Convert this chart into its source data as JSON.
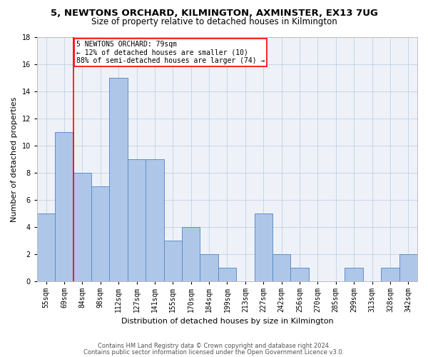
{
  "title": "5, NEWTONS ORCHARD, KILMINGTON, AXMINSTER, EX13 7UG",
  "subtitle": "Size of property relative to detached houses in Kilmington",
  "xlabel": "Distribution of detached houses by size in Kilmington",
  "ylabel": "Number of detached properties",
  "bin_labels": [
    "55sqm",
    "69sqm",
    "84sqm",
    "98sqm",
    "112sqm",
    "127sqm",
    "141sqm",
    "155sqm",
    "170sqm",
    "184sqm",
    "199sqm",
    "213sqm",
    "227sqm",
    "242sqm",
    "256sqm",
    "270sqm",
    "285sqm",
    "299sqm",
    "313sqm",
    "328sqm",
    "342sqm"
  ],
  "bar_values": [
    5,
    11,
    8,
    7,
    15,
    9,
    9,
    3,
    4,
    2,
    1,
    0,
    5,
    2,
    1,
    0,
    0,
    1,
    0,
    1,
    2
  ],
  "bar_color": "#aec6e8",
  "bar_edge_color": "#5b8fc9",
  "vline_x": 1.5,
  "annotation_title": "5 NEWTONS ORCHARD: 79sqm",
  "annotation_line1": "← 12% of detached houses are smaller (10)",
  "annotation_line2": "88% of semi-detached houses are larger (74) →",
  "annotation_box_color": "white",
  "annotation_box_edge_color": "red",
  "vline_color": "red",
  "ylim": [
    0,
    18
  ],
  "yticks": [
    0,
    2,
    4,
    6,
    8,
    10,
    12,
    14,
    16,
    18
  ],
  "footer1": "Contains HM Land Registry data © Crown copyright and database right 2024.",
  "footer2": "Contains public sector information licensed under the Open Government Licence v3.0.",
  "bg_color": "#eef2f8",
  "grid_color": "#c8d4e4",
  "title_fontsize": 9.5,
  "subtitle_fontsize": 8.5,
  "xlabel_fontsize": 8,
  "ylabel_fontsize": 8,
  "tick_fontsize": 7,
  "annot_fontsize": 7,
  "footer_fontsize": 6
}
